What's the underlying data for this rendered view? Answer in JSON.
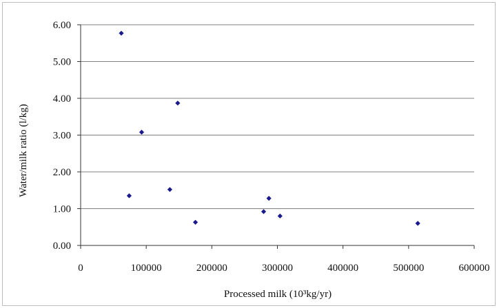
{
  "chart_data": {
    "type": "scatter",
    "title": "",
    "xlabel": "Processed milk (10³kg/yr)",
    "ylabel": "Water/milk ratio (l/kg)",
    "xlim": [
      0,
      600000
    ],
    "ylim": [
      0,
      6
    ],
    "xticks": [
      0,
      100000,
      200000,
      300000,
      400000,
      500000,
      600000
    ],
    "xtick_labels": [
      "0",
      "100000",
      "200000",
      "300000",
      "400000",
      "500000",
      "600000"
    ],
    "yticks": [
      0,
      1,
      2,
      3,
      4,
      5,
      6
    ],
    "ytick_labels": [
      "0.00",
      "1.00",
      "2.00",
      "3.00",
      "4.00",
      "5.00",
      "6.00"
    ],
    "grid": "horizontal",
    "legend": "none",
    "marker_color": "#1a1a8c",
    "grid_color": "#808080",
    "points": [
      {
        "x": 62000,
        "y": 5.77
      },
      {
        "x": 74000,
        "y": 1.35
      },
      {
        "x": 93000,
        "y": 3.08
      },
      {
        "x": 136000,
        "y": 1.52
      },
      {
        "x": 148000,
        "y": 3.87
      },
      {
        "x": 175000,
        "y": 0.63
      },
      {
        "x": 279000,
        "y": 0.92
      },
      {
        "x": 287000,
        "y": 1.28
      },
      {
        "x": 304000,
        "y": 0.8
      },
      {
        "x": 514000,
        "y": 0.6
      }
    ]
  }
}
